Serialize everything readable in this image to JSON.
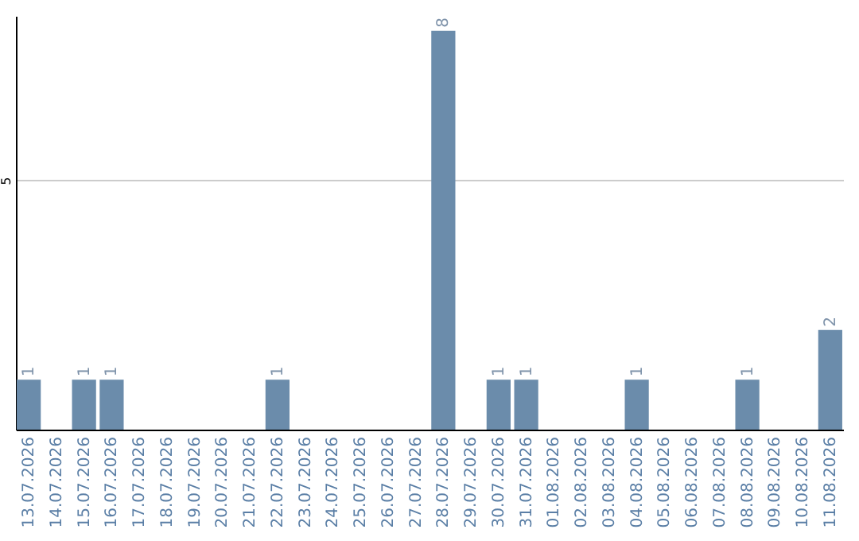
{
  "chart_data": {
    "type": "bar",
    "categories": [
      "13.07.2026",
      "14.07.2026",
      "15.07.2026",
      "16.07.2026",
      "17.07.2026",
      "18.07.2026",
      "19.07.2026",
      "20.07.2026",
      "21.07.2026",
      "22.07.2026",
      "23.07.2026",
      "24.07.2026",
      "25.07.2026",
      "26.07.2026",
      "27.07.2026",
      "28.07.2026",
      "29.07.2026",
      "30.07.2026",
      "31.07.2026",
      "01.08.2026",
      "02.08.2026",
      "03.08.2026",
      "04.08.2026",
      "05.08.2026",
      "06.08.2026",
      "07.08.2026",
      "08.08.2026",
      "09.08.2026",
      "10.08.2026",
      "11.08.2026"
    ],
    "values": [
      1,
      0,
      1,
      1,
      0,
      0,
      0,
      0,
      0,
      1,
      0,
      0,
      0,
      0,
      0,
      8,
      0,
      1,
      1,
      0,
      0,
      0,
      1,
      0,
      0,
      0,
      1,
      0,
      0,
      2
    ],
    "value_labels": [
      "1",
      null,
      "1",
      "1",
      null,
      null,
      null,
      null,
      null,
      "1",
      null,
      null,
      null,
      null,
      null,
      "8",
      null,
      "1",
      "1",
      null,
      null,
      null,
      "1",
      null,
      null,
      null,
      "1",
      null,
      null,
      "2"
    ],
    "color": "#6b8cab",
    "ylim": [
      0,
      8.3
    ],
    "yticks": [
      5
    ],
    "grid": "y"
  }
}
